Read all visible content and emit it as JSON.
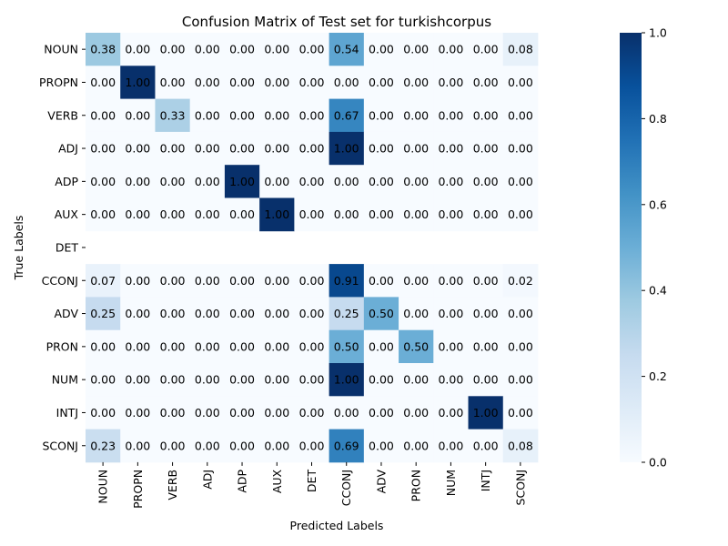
{
  "chart_data": {
    "type": "heatmap",
    "title": "Confusion Matrix of Test set for turkishcorpus",
    "xlabel": "Predicted Labels",
    "ylabel": "True Labels",
    "x_categories": [
      "NOUN",
      "PROPN",
      "VERB",
      "ADJ",
      "ADP",
      "AUX",
      "DET",
      "CCONJ",
      "ADV",
      "PRON",
      "NUM",
      "INTJ",
      "SCONJ"
    ],
    "y_categories": [
      "NOUN",
      "PROPN",
      "VERB",
      "ADJ",
      "ADP",
      "AUX",
      "DET",
      "CCONJ",
      "ADV",
      "PRON",
      "NUM",
      "INTJ",
      "SCONJ"
    ],
    "values": [
      [
        0.38,
        0.0,
        0.0,
        0.0,
        0.0,
        0.0,
        0.0,
        0.54,
        0.0,
        0.0,
        0.0,
        0.0,
        0.08
      ],
      [
        0.0,
        1.0,
        0.0,
        0.0,
        0.0,
        0.0,
        0.0,
        0.0,
        0.0,
        0.0,
        0.0,
        0.0,
        0.0
      ],
      [
        0.0,
        0.0,
        0.33,
        0.0,
        0.0,
        0.0,
        0.0,
        0.67,
        0.0,
        0.0,
        0.0,
        0.0,
        0.0
      ],
      [
        0.0,
        0.0,
        0.0,
        0.0,
        0.0,
        0.0,
        0.0,
        1.0,
        0.0,
        0.0,
        0.0,
        0.0,
        0.0
      ],
      [
        0.0,
        0.0,
        0.0,
        0.0,
        1.0,
        0.0,
        0.0,
        0.0,
        0.0,
        0.0,
        0.0,
        0.0,
        0.0
      ],
      [
        0.0,
        0.0,
        0.0,
        0.0,
        0.0,
        1.0,
        0.0,
        0.0,
        0.0,
        0.0,
        0.0,
        0.0,
        0.0
      ],
      [
        null,
        null,
        null,
        null,
        null,
        null,
        null,
        null,
        null,
        null,
        null,
        null,
        null
      ],
      [
        0.07,
        0.0,
        0.0,
        0.0,
        0.0,
        0.0,
        0.0,
        0.91,
        0.0,
        0.0,
        0.0,
        0.0,
        0.02
      ],
      [
        0.25,
        0.0,
        0.0,
        0.0,
        0.0,
        0.0,
        0.0,
        0.25,
        0.5,
        0.0,
        0.0,
        0.0,
        0.0
      ],
      [
        0.0,
        0.0,
        0.0,
        0.0,
        0.0,
        0.0,
        0.0,
        0.5,
        0.0,
        0.5,
        0.0,
        0.0,
        0.0
      ],
      [
        0.0,
        0.0,
        0.0,
        0.0,
        0.0,
        0.0,
        0.0,
        1.0,
        0.0,
        0.0,
        0.0,
        0.0,
        0.0
      ],
      [
        0.0,
        0.0,
        0.0,
        0.0,
        0.0,
        0.0,
        0.0,
        0.0,
        0.0,
        0.0,
        0.0,
        1.0,
        0.0
      ],
      [
        0.23,
        0.0,
        0.0,
        0.0,
        0.0,
        0.0,
        0.0,
        0.69,
        0.0,
        0.0,
        0.0,
        0.0,
        0.08
      ]
    ],
    "colormap": "Blues",
    "colorbar": {
      "range": [
        0,
        1
      ],
      "ticks": [
        "0.0",
        "0.2",
        "0.4",
        "0.6",
        "0.8",
        "1.0"
      ]
    },
    "grid": false
  }
}
